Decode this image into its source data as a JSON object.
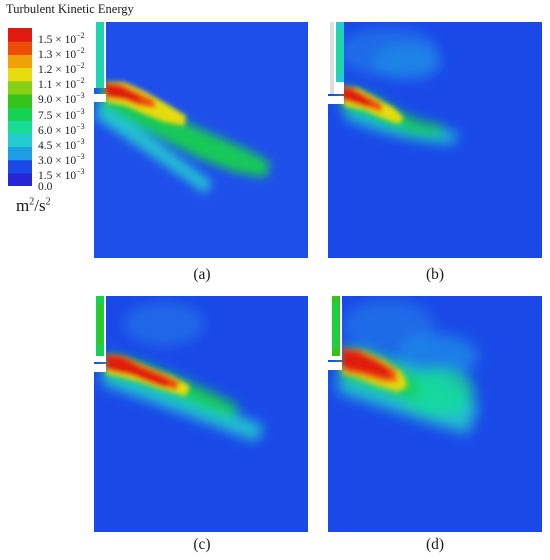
{
  "legend": {
    "title": "Turbulent Kinetic Energy",
    "ticks": [
      {
        "mantissa": "1.5",
        "exp": "−2"
      },
      {
        "mantissa": "1.3",
        "exp": "−2"
      },
      {
        "mantissa": "1.2",
        "exp": "−2"
      },
      {
        "mantissa": "1.1",
        "exp": "−2"
      },
      {
        "mantissa": "9.0",
        "exp": "−3"
      },
      {
        "mantissa": "7.5",
        "exp": "−3"
      },
      {
        "mantissa": "6.0",
        "exp": "−3"
      },
      {
        "mantissa": "4.5",
        "exp": "−3"
      },
      {
        "mantissa": "3.0",
        "exp": "−3"
      },
      {
        "mantissa": "1.5",
        "exp": "−3"
      },
      {
        "mantissa": "0.0",
        "exp": ""
      }
    ],
    "colors": [
      "#2626d6",
      "#1a49e8",
      "#1f9ee8",
      "#22ccd0",
      "#18dc98",
      "#16d050",
      "#36c41a",
      "#88d016",
      "#e6dc0e",
      "#f2a007",
      "#ec4e08",
      "#e01a10"
    ],
    "unit_base": "m",
    "unit_exp_1": "2",
    "unit_mid": "/s",
    "unit_exp_2": "2"
  },
  "panels": [
    {
      "label": "(a)"
    },
    {
      "label": "(b)"
    },
    {
      "label": "(c)"
    },
    {
      "label": "(d)"
    }
  ]
}
